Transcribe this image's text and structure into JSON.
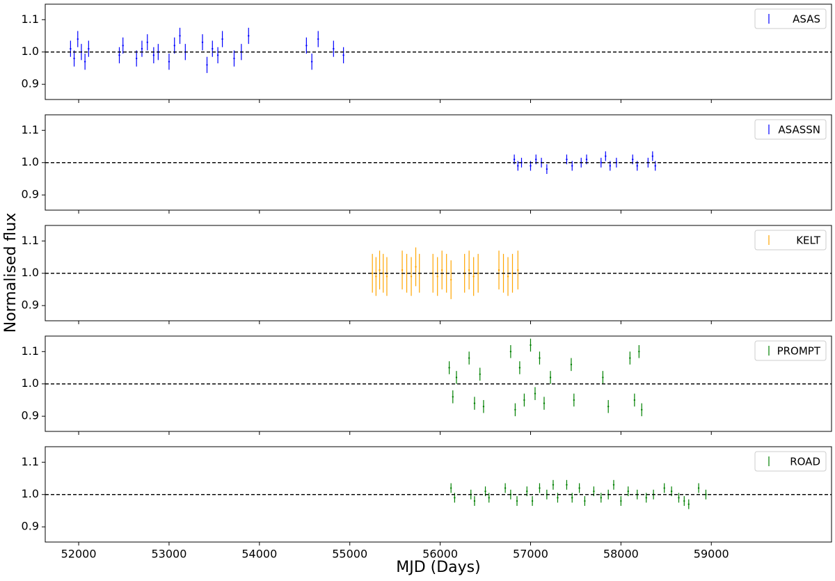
{
  "chart_data": [
    {
      "type": "errorbar",
      "xlim": [
        51630,
        60330
      ],
      "ylim": [
        0.853,
        1.148
      ],
      "yticks": [
        0.9,
        {
          "value": 1,
          "label": "1.0"
        },
        1.1
      ],
      "reference_line": 1,
      "legend": "upper right",
      "series": [
        {
          "name": "ASAS",
          "color": "#0000ff",
          "error": 0.025,
          "x": [
            51910,
            51950,
            51990,
            52030,
            52070,
            52110,
            52450,
            52490,
            52640,
            52700,
            52760,
            52830,
            52880,
            53000,
            53060,
            53120,
            53180,
            53370,
            53420,
            53480,
            53540,
            53590,
            53720,
            53800,
            53880,
            54520,
            54580,
            54650,
            54820,
            54930
          ],
          "values": [
            1.01,
            0.98,
            1.04,
            1.0,
            0.97,
            1.01,
            0.99,
            1.02,
            0.98,
            1.01,
            1.03,
            0.99,
            1.0,
            0.97,
            1.02,
            1.05,
            1.0,
            1.03,
            0.96,
            1.01,
            0.99,
            1.04,
            0.98,
            1.0,
            1.05,
            1.02,
            0.97,
            1.04,
            1.01,
            0.99
          ]
        }
      ]
    },
    {
      "type": "errorbar",
      "xlim": [
        51630,
        60330
      ],
      "ylim": [
        0.853,
        1.148
      ],
      "yticks": [
        0.9,
        {
          "value": 1,
          "label": "1.0"
        },
        1.1
      ],
      "reference_line": 1,
      "legend": "upper right",
      "series": [
        {
          "name": "ASASSN",
          "color": "#0000ff",
          "error": 0.015,
          "x": [
            56820,
            56860,
            56900,
            57000,
            57060,
            57120,
            57180,
            57400,
            57460,
            57560,
            57620,
            57780,
            57830,
            57880,
            57950,
            58130,
            58180,
            58300,
            58350,
            58380
          ],
          "values": [
            1.01,
            0.99,
            1.0,
            0.99,
            1.01,
            1.0,
            0.98,
            1.01,
            0.99,
            1.0,
            1.01,
            1.0,
            1.02,
            0.99,
            1.0,
            1.01,
            0.99,
            1.0,
            1.02,
            0.99
          ]
        }
      ]
    },
    {
      "type": "errorbar",
      "xlim": [
        51630,
        60330
      ],
      "ylim": [
        0.853,
        1.148
      ],
      "yticks": [
        0.9,
        {
          "value": 1,
          "label": "1.0"
        },
        1.1
      ],
      "reference_line": 1,
      "legend": "upper right",
      "ylabel": "Normalised flux",
      "series": [
        {
          "name": "KELT",
          "color": "#ffa500",
          "error": 0.06,
          "x": [
            55250,
            55290,
            55330,
            55370,
            55410,
            55580,
            55630,
            55680,
            55730,
            55770,
            55920,
            55970,
            56020,
            56070,
            56120,
            56270,
            56320,
            56370,
            56420,
            56650,
            56700,
            56750,
            56800,
            56860
          ],
          "values": [
            1.0,
            0.99,
            1.01,
            1.0,
            0.99,
            1.01,
            1.0,
            0.99,
            1.02,
            1.0,
            1.0,
            0.99,
            1.01,
            1.0,
            0.98,
            1.0,
            1.01,
            0.99,
            1.0,
            1.01,
            1.0,
            0.99,
            1.0,
            1.01
          ]
        }
      ]
    },
    {
      "type": "errorbar",
      "xlim": [
        51630,
        60330
      ],
      "ylim": [
        0.853,
        1.148
      ],
      "yticks": [
        0.9,
        {
          "value": 1,
          "label": "1.0"
        },
        1.1
      ],
      "reference_line": 1,
      "legend": "upper right",
      "series": [
        {
          "name": "PROMPT",
          "color": "#008000",
          "error": 0.02,
          "x": [
            56100,
            56140,
            56180,
            56320,
            56380,
            56440,
            56480,
            56780,
            56830,
            56880,
            56930,
            57000,
            57050,
            57100,
            57150,
            57220,
            57450,
            57480,
            57800,
            57860,
            58100,
            58150,
            58200,
            58230
          ],
          "values": [
            1.05,
            0.96,
            1.02,
            1.08,
            0.94,
            1.03,
            0.93,
            1.1,
            0.92,
            1.05,
            0.95,
            1.12,
            0.97,
            1.08,
            0.94,
            1.02,
            1.06,
            0.95,
            1.02,
            0.93,
            1.08,
            0.95,
            1.1,
            0.92
          ]
        }
      ]
    },
    {
      "type": "errorbar",
      "xlim": [
        51630,
        60330
      ],
      "ylim": [
        0.853,
        1.148
      ],
      "yticks": [
        0.9,
        {
          "value": 1,
          "label": "1.0"
        },
        1.1
      ],
      "reference_line": 1,
      "legend": "upper right",
      "xticks": [
        52000,
        53000,
        54000,
        55000,
        56000,
        57000,
        58000,
        59000
      ],
      "xlabel": "MJD (Days)",
      "series": [
        {
          "name": "ROAD",
          "color": "#008000",
          "error": 0.015,
          "x": [
            56120,
            56160,
            56340,
            56380,
            56500,
            56540,
            56720,
            56780,
            56850,
            56960,
            57020,
            57100,
            57180,
            57250,
            57300,
            57400,
            57460,
            57540,
            57600,
            57700,
            57780,
            57860,
            57920,
            58000,
            58080,
            58180,
            58280,
            58360,
            58480,
            58560,
            58640,
            58700,
            58750,
            58860,
            58940
          ],
          "values": [
            1.02,
            0.99,
            1.0,
            0.98,
            1.01,
            0.99,
            1.02,
            1.0,
            0.98,
            1.01,
            0.98,
            1.02,
            1.0,
            1.03,
            0.99,
            1.03,
            0.99,
            1.02,
            0.98,
            1.01,
            0.99,
            1.0,
            1.03,
            0.98,
            1.01,
            1.0,
            0.99,
            1.0,
            1.02,
            1.01,
            0.99,
            0.98,
            0.97,
            1.02,
            1.0
          ]
        }
      ]
    }
  ]
}
